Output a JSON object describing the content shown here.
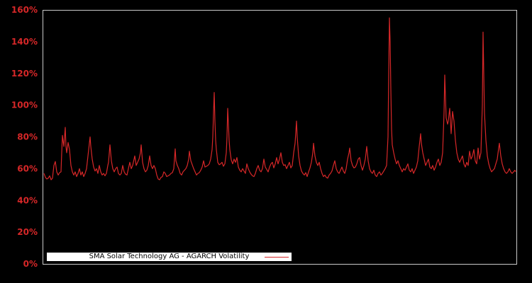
{
  "window": {
    "background": "#000000"
  },
  "legend": {
    "label": "SMA Solar Technology AG - AGARCH Volatility"
  },
  "chart_data": {
    "type": "line",
    "title": "",
    "series_name": "SMA Solar Technology AG - AGARCH Volatility",
    "line_color": "#d62728",
    "tick_label_color": "#d62728",
    "frame_color": "#c9c9c9",
    "background_color": "#000000",
    "grid": false,
    "legend_position": "bottom-left",
    "ylabel": "",
    "xlabel": "",
    "x_tick_labels_visible": false,
    "ylim": [
      0,
      160
    ],
    "ytick_values": [
      0,
      20,
      40,
      60,
      80,
      100,
      120,
      140,
      160
    ],
    "ytick_labels": [
      "0%",
      "20%",
      "40%",
      "60%",
      "80%",
      "100%",
      "120%",
      "140%",
      "160%"
    ],
    "x_domain": [
      62,
      727
    ],
    "points": [
      [
        62,
        57
      ],
      [
        64,
        54.5
      ],
      [
        66,
        53.5
      ],
      [
        68,
        54
      ],
      [
        70,
        55.5
      ],
      [
        72,
        53
      ],
      [
        74,
        54
      ],
      [
        76,
        62
      ],
      [
        78,
        64.5
      ],
      [
        80,
        58
      ],
      [
        82,
        56
      ],
      [
        84,
        57.5
      ],
      [
        86,
        58
      ],
      [
        87,
        70
      ],
      [
        88,
        81
      ],
      [
        90,
        74
      ],
      [
        92,
        86
      ],
      [
        93,
        74
      ],
      [
        94,
        70
      ],
      [
        96,
        76.5
      ],
      [
        98,
        72
      ],
      [
        100,
        62
      ],
      [
        102,
        58
      ],
      [
        104,
        56
      ],
      [
        106,
        58
      ],
      [
        108,
        55
      ],
      [
        110,
        57
      ],
      [
        112,
        60
      ],
      [
        114,
        56
      ],
      [
        116,
        58
      ],
      [
        118,
        55
      ],
      [
        120,
        57
      ],
      [
        122,
        60
      ],
      [
        124,
        68
      ],
      [
        126,
        76
      ],
      [
        127,
        80
      ],
      [
        128,
        74
      ],
      [
        130,
        66
      ],
      [
        132,
        61
      ],
      [
        134,
        58.5
      ],
      [
        136,
        60
      ],
      [
        138,
        57
      ],
      [
        140,
        62
      ],
      [
        142,
        58
      ],
      [
        144,
        56
      ],
      [
        146,
        57
      ],
      [
        148,
        55.5
      ],
      [
        150,
        57
      ],
      [
        152,
        62
      ],
      [
        153,
        64
      ],
      [
        155,
        75
      ],
      [
        157,
        65
      ],
      [
        159,
        60
      ],
      [
        161,
        58
      ],
      [
        163,
        60
      ],
      [
        165,
        61
      ],
      [
        167,
        57
      ],
      [
        169,
        56
      ],
      [
        171,
        57
      ],
      [
        173,
        62
      ],
      [
        175,
        58
      ],
      [
        177,
        56.5
      ],
      [
        179,
        56
      ],
      [
        181,
        60
      ],
      [
        183,
        64
      ],
      [
        185,
        60
      ],
      [
        187,
        62
      ],
      [
        190,
        68
      ],
      [
        192,
        62
      ],
      [
        194,
        64
      ],
      [
        196,
        66
      ],
      [
        198,
        70
      ],
      [
        199,
        75
      ],
      [
        201,
        64
      ],
      [
        203,
        60
      ],
      [
        205,
        58
      ],
      [
        207,
        59
      ],
      [
        209,
        62
      ],
      [
        211,
        68
      ],
      [
        213,
        62
      ],
      [
        215,
        60
      ],
      [
        217,
        62
      ],
      [
        219,
        60
      ],
      [
        221,
        56
      ],
      [
        223,
        53.5
      ],
      [
        225,
        53
      ],
      [
        227,
        54.5
      ],
      [
        229,
        55
      ],
      [
        231,
        58
      ],
      [
        233,
        57
      ],
      [
        235,
        55
      ],
      [
        237,
        55.5
      ],
      [
        239,
        56
      ],
      [
        241,
        57
      ],
      [
        243,
        57.5
      ],
      [
        245,
        60
      ],
      [
        247,
        72.5
      ],
      [
        248,
        65
      ],
      [
        250,
        62
      ],
      [
        252,
        60
      ],
      [
        254,
        57
      ],
      [
        256,
        56
      ],
      [
        258,
        58
      ],
      [
        260,
        59
      ],
      [
        262,
        60
      ],
      [
        264,
        62
      ],
      [
        266,
        66
      ],
      [
        267,
        71
      ],
      [
        269,
        65
      ],
      [
        271,
        62.5
      ],
      [
        273,
        60
      ],
      [
        275,
        58
      ],
      [
        277,
        56
      ],
      [
        279,
        57
      ],
      [
        281,
        57.5
      ],
      [
        283,
        59
      ],
      [
        285,
        61
      ],
      [
        287,
        65
      ],
      [
        289,
        61
      ],
      [
        291,
        61.5
      ],
      [
        293,
        62
      ],
      [
        295,
        63
      ],
      [
        297,
        66
      ],
      [
        299,
        72
      ],
      [
        300,
        80
      ],
      [
        301,
        95
      ],
      [
        302,
        108
      ],
      [
        303,
        90
      ],
      [
        304,
        78
      ],
      [
        305,
        72
      ],
      [
        307,
        64
      ],
      [
        309,
        62.5
      ],
      [
        311,
        63
      ],
      [
        313,
        64
      ],
      [
        315,
        61.5
      ],
      [
        317,
        63
      ],
      [
        319,
        70
      ],
      [
        320,
        80
      ],
      [
        321,
        98
      ],
      [
        322,
        88
      ],
      [
        323,
        78
      ],
      [
        324,
        72
      ],
      [
        326,
        65.5
      ],
      [
        328,
        63
      ],
      [
        330,
        66
      ],
      [
        332,
        64
      ],
      [
        334,
        67
      ],
      [
        336,
        61
      ],
      [
        338,
        59
      ],
      [
        340,
        58
      ],
      [
        342,
        60
      ],
      [
        344,
        58.5
      ],
      [
        346,
        57
      ],
      [
        348,
        63
      ],
      [
        350,
        60
      ],
      [
        352,
        58
      ],
      [
        354,
        56.5
      ],
      [
        356,
        55.5
      ],
      [
        358,
        55
      ],
      [
        360,
        57
      ],
      [
        362,
        60
      ],
      [
        364,
        62
      ],
      [
        366,
        59
      ],
      [
        368,
        58
      ],
      [
        370,
        60
      ],
      [
        372,
        66
      ],
      [
        374,
        61
      ],
      [
        376,
        59.5
      ],
      [
        378,
        58
      ],
      [
        380,
        61
      ],
      [
        382,
        63
      ],
      [
        384,
        64
      ],
      [
        386,
        60.5
      ],
      [
        388,
        63
      ],
      [
        390,
        67
      ],
      [
        392,
        63
      ],
      [
        394,
        66
      ],
      [
        396,
        70
      ],
      [
        398,
        64
      ],
      [
        400,
        62
      ],
      [
        402,
        62.5
      ],
      [
        404,
        60
      ],
      [
        406,
        62
      ],
      [
        408,
        64
      ],
      [
        410,
        60.5
      ],
      [
        412,
        62
      ],
      [
        414,
        70
      ],
      [
        416,
        76
      ],
      [
        418,
        90
      ],
      [
        419,
        80
      ],
      [
        421,
        68
      ],
      [
        423,
        62
      ],
      [
        425,
        58.5
      ],
      [
        427,
        57
      ],
      [
        429,
        56
      ],
      [
        431,
        57.5
      ],
      [
        433,
        55
      ],
      [
        435,
        58
      ],
      [
        437,
        60.5
      ],
      [
        439,
        64
      ],
      [
        441,
        70
      ],
      [
        442,
        76
      ],
      [
        444,
        68
      ],
      [
        446,
        64
      ],
      [
        448,
        62
      ],
      [
        450,
        64
      ],
      [
        452,
        60
      ],
      [
        454,
        57
      ],
      [
        456,
        55
      ],
      [
        458,
        56
      ],
      [
        460,
        54.5
      ],
      [
        462,
        54
      ],
      [
        464,
        56
      ],
      [
        466,
        57
      ],
      [
        468,
        58.5
      ],
      [
        470,
        62
      ],
      [
        472,
        65
      ],
      [
        474,
        60
      ],
      [
        476,
        58
      ],
      [
        478,
        57
      ],
      [
        480,
        59
      ],
      [
        482,
        61
      ],
      [
        484,
        58.5
      ],
      [
        486,
        57
      ],
      [
        488,
        60
      ],
      [
        490,
        66
      ],
      [
        492,
        70
      ],
      [
        493,
        73
      ],
      [
        495,
        65
      ],
      [
        497,
        62
      ],
      [
        499,
        60.5
      ],
      [
        501,
        61
      ],
      [
        503,
        63
      ],
      [
        505,
        66
      ],
      [
        507,
        67
      ],
      [
        509,
        62
      ],
      [
        511,
        59
      ],
      [
        513,
        62
      ],
      [
        515,
        66
      ],
      [
        517,
        74
      ],
      [
        519,
        65
      ],
      [
        521,
        60
      ],
      [
        523,
        58
      ],
      [
        525,
        57
      ],
      [
        527,
        59
      ],
      [
        529,
        56
      ],
      [
        531,
        55
      ],
      [
        533,
        57
      ],
      [
        535,
        58
      ],
      [
        537,
        56
      ],
      [
        539,
        57
      ],
      [
        541,
        58.5
      ],
      [
        543,
        60
      ],
      [
        545,
        62
      ],
      [
        547,
        80
      ],
      [
        548,
        120
      ],
      [
        549,
        155
      ],
      [
        550,
        140
      ],
      [
        551,
        110
      ],
      [
        552,
        85
      ],
      [
        553,
        75
      ],
      [
        555,
        70
      ],
      [
        557,
        66
      ],
      [
        559,
        63
      ],
      [
        561,
        65
      ],
      [
        563,
        62
      ],
      [
        565,
        60
      ],
      [
        567,
        58
      ],
      [
        569,
        60
      ],
      [
        571,
        59
      ],
      [
        573,
        61
      ],
      [
        575,
        63
      ],
      [
        577,
        59
      ],
      [
        579,
        58
      ],
      [
        581,
        60
      ],
      [
        583,
        57
      ],
      [
        585,
        59
      ],
      [
        587,
        61
      ],
      [
        589,
        65
      ],
      [
        591,
        74
      ],
      [
        593,
        82
      ],
      [
        594,
        76
      ],
      [
        596,
        70
      ],
      [
        598,
        66
      ],
      [
        600,
        62
      ],
      [
        602,
        64
      ],
      [
        604,
        66
      ],
      [
        606,
        61
      ],
      [
        608,
        60
      ],
      [
        610,
        62
      ],
      [
        612,
        59
      ],
      [
        614,
        61
      ],
      [
        616,
        64
      ],
      [
        618,
        66
      ],
      [
        620,
        62
      ],
      [
        622,
        64
      ],
      [
        624,
        70
      ],
      [
        626,
        95
      ],
      [
        627,
        119
      ],
      [
        628,
        105
      ],
      [
        629,
        92
      ],
      [
        631,
        88
      ],
      [
        632,
        90
      ],
      [
        634,
        98
      ],
      [
        636,
        82
      ],
      [
        638,
        96
      ],
      [
        640,
        90
      ],
      [
        642,
        78
      ],
      [
        644,
        70
      ],
      [
        646,
        66
      ],
      [
        648,
        64
      ],
      [
        650,
        66
      ],
      [
        652,
        68
      ],
      [
        654,
        63
      ],
      [
        656,
        61
      ],
      [
        658,
        64
      ],
      [
        660,
        62
      ],
      [
        662,
        71
      ],
      [
        664,
        66
      ],
      [
        666,
        68
      ],
      [
        668,
        72
      ],
      [
        670,
        65
      ],
      [
        672,
        63
      ],
      [
        674,
        73
      ],
      [
        676,
        66
      ],
      [
        678,
        70
      ],
      [
        680,
        100
      ],
      [
        681,
        146
      ],
      [
        682,
        120
      ],
      [
        683,
        95
      ],
      [
        685,
        78
      ],
      [
        687,
        68
      ],
      [
        689,
        63
      ],
      [
        691,
        60
      ],
      [
        693,
        58
      ],
      [
        695,
        59
      ],
      [
        697,
        60
      ],
      [
        699,
        63
      ],
      [
        701,
        66
      ],
      [
        703,
        73
      ],
      [
        704,
        76
      ],
      [
        706,
        68
      ],
      [
        708,
        63
      ],
      [
        710,
        60
      ],
      [
        712,
        58
      ],
      [
        714,
        57
      ],
      [
        716,
        58
      ],
      [
        718,
        60
      ],
      [
        720,
        58
      ],
      [
        722,
        57
      ],
      [
        724,
        58
      ],
      [
        726,
        59
      ],
      [
        727,
        58
      ]
    ]
  }
}
